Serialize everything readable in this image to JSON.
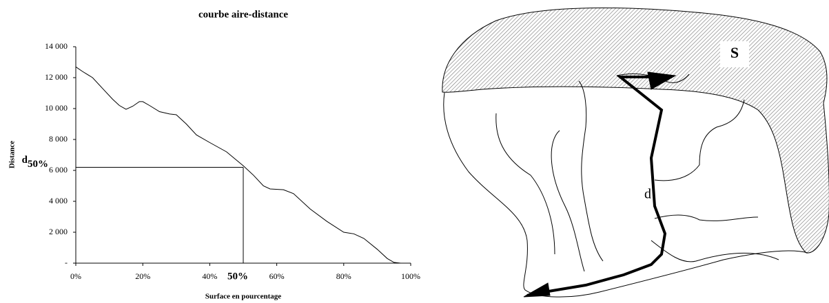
{
  "chart_data": {
    "type": "line",
    "title": "courbe aire-distance",
    "x_label": "Surface en pourcentage",
    "y_label": "Distance",
    "series": [
      {
        "name": "Distance",
        "color": "#000000",
        "x": [
          0,
          2,
          5,
          8,
          11,
          13,
          15,
          17,
          19,
          20,
          22,
          25,
          28,
          30,
          33,
          36,
          40,
          45,
          50,
          53,
          56,
          58,
          62,
          65,
          70,
          75,
          80,
          83,
          86,
          90,
          93,
          95,
          97,
          100
        ],
        "values": [
          12700,
          12400,
          12000,
          11300,
          10600,
          10200,
          9950,
          10150,
          10450,
          10450,
          10200,
          9800,
          9650,
          9600,
          9000,
          8300,
          7800,
          7200,
          6300,
          5700,
          5000,
          4800,
          4750,
          4500,
          3500,
          2700,
          2000,
          1900,
          1600,
          900,
          300,
          50,
          0,
          0
        ]
      }
    ],
    "xlim": [
      0,
      100
    ],
    "ylim": [
      0,
      14000
    ],
    "xticks": [
      {
        "value": 0,
        "label": "0%"
      },
      {
        "value": 20,
        "label": "20%"
      },
      {
        "value": 40,
        "label": "40%"
      },
      {
        "value": 60,
        "label": "60%"
      },
      {
        "value": 80,
        "label": "80%"
      },
      {
        "value": 100,
        "label": "100%"
      }
    ],
    "yticks": [
      {
        "value": 0,
        "label": "-"
      },
      {
        "value": 2000,
        "label": "2 000"
      },
      {
        "value": 4000,
        "label": "4 000"
      },
      {
        "value": 6000,
        "label": "6 000"
      },
      {
        "value": 8000,
        "label": "8 000"
      },
      {
        "value": 10000,
        "label": "10 000"
      },
      {
        "value": 12000,
        "label": "12 000"
      },
      {
        "value": 14000,
        "label": "14 000"
      }
    ],
    "grid": false,
    "reference": {
      "x": 50,
      "y": 6200,
      "x_label": "50%",
      "y_label_main": "d",
      "y_label_sub": "50%"
    }
  },
  "diagram": {
    "area_label": "S",
    "distance_label": "d"
  }
}
